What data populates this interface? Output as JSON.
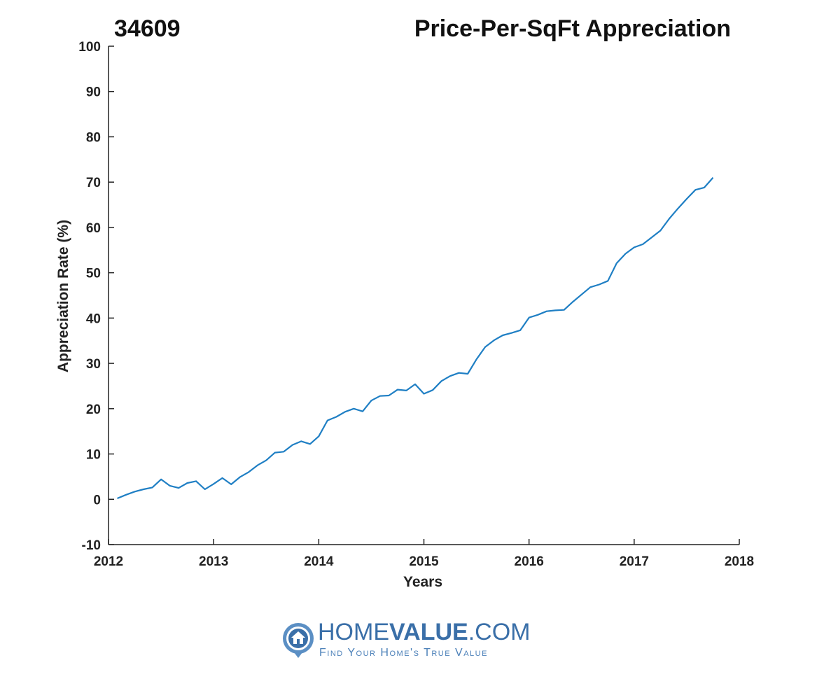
{
  "chart_data": {
    "type": "line",
    "title_left": "34609",
    "title": "Price-Per-SqFt Appreciation",
    "xlabel": "Years",
    "ylabel": "Appreciation Rate (%)",
    "xlim": [
      2012,
      2018
    ],
    "ylim": [
      -10,
      100
    ],
    "xticks": [
      2012,
      2013,
      2014,
      2015,
      2016,
      2017,
      2018
    ],
    "yticks": [
      -10,
      0,
      10,
      20,
      30,
      40,
      50,
      60,
      70,
      80,
      90,
      100
    ],
    "grid": false,
    "line_color": "#1f7fc4",
    "series": [
      {
        "x": [
          2012.083,
          2012.167,
          2012.25,
          2012.333,
          2012.417,
          2012.5,
          2012.583,
          2012.667,
          2012.75,
          2012.833,
          2012.917,
          2013.0,
          2013.083,
          2013.167,
          2013.25,
          2013.333,
          2013.417,
          2013.5,
          2013.583,
          2013.667,
          2013.75,
          2013.833,
          2013.917,
          2014.0,
          2014.083,
          2014.167,
          2014.25,
          2014.333,
          2014.417,
          2014.5,
          2014.583,
          2014.667,
          2014.75,
          2014.833,
          2014.917,
          2015.0,
          2015.083,
          2015.167,
          2015.25,
          2015.333,
          2015.417,
          2015.5,
          2015.583,
          2015.667,
          2015.75,
          2015.833,
          2015.917,
          2016.0,
          2016.083,
          2016.167,
          2016.25,
          2016.333,
          2016.417,
          2016.5,
          2016.583,
          2016.667,
          2016.75,
          2016.833,
          2016.917,
          2017.0,
          2017.083,
          2017.167,
          2017.25,
          2017.333,
          2017.417,
          2017.5,
          2017.583,
          2017.667,
          2017.75
        ],
        "values": [
          0.2,
          1.0,
          1.7,
          2.2,
          2.6,
          4.4,
          3.0,
          2.5,
          3.6,
          4.0,
          2.2,
          3.4,
          4.7,
          3.3,
          4.9,
          6.0,
          7.5,
          8.6,
          10.3,
          10.5,
          12.0,
          12.8,
          12.2,
          13.9,
          17.4,
          18.2,
          19.3,
          20.0,
          19.4,
          21.8,
          22.8,
          22.9,
          24.2,
          24.0,
          25.4,
          23.3,
          24.1,
          26.1,
          27.2,
          27.9,
          27.7,
          30.9,
          33.6,
          35.1,
          36.2,
          36.7,
          37.3,
          40.1,
          40.7,
          41.5,
          41.7,
          41.8,
          43.6,
          45.2,
          46.8,
          47.4,
          48.2,
          52.1,
          54.2,
          55.6,
          56.3,
          57.8,
          59.3,
          61.9,
          64.2,
          66.3,
          68.3,
          68.8,
          71.0
        ]
      }
    ]
  },
  "logo": {
    "text_light": "HOME",
    "text_bold": "VALUE",
    "text_suffix": ".COM",
    "tagline": "Find Your Home's True Value"
  }
}
